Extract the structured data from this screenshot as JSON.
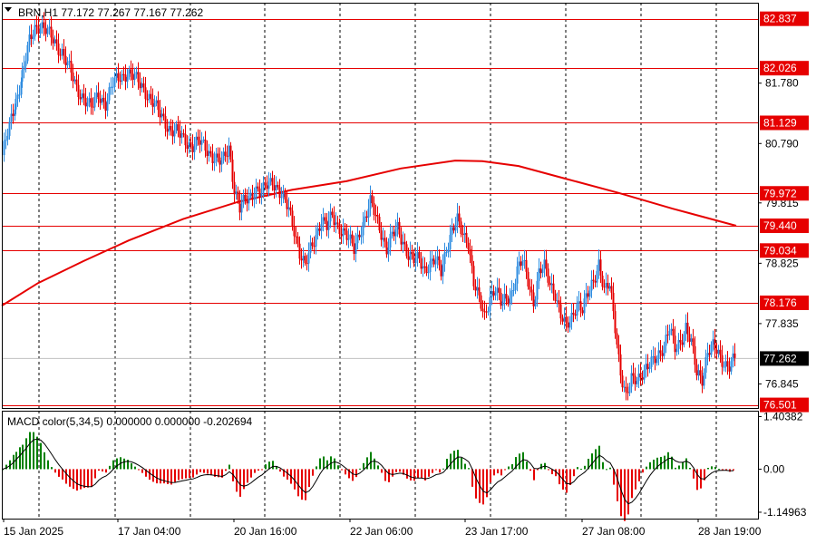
{
  "header": {
    "symbol_line": "BRN,H1  77.172 77.267 77.167 77.262",
    "macd_line": "MACD color(5,34,5) 0.000000 0.000000 -0.202694"
  },
  "chart_data": [
    {
      "type": "candlestick",
      "title": "BRN,H1",
      "ohlc_last": {
        "open": 77.172,
        "high": 77.267,
        "low": 77.167,
        "close": 77.262
      },
      "ylim": [
        76.45,
        83.1
      ],
      "y_ticks": [
        81.78,
        80.79,
        79.815,
        78.825,
        77.835,
        76.845
      ],
      "current_price": 77.262,
      "levels": [
        82.837,
        82.026,
        81.129,
        79.972,
        79.44,
        79.034,
        78.176,
        76.501
      ],
      "x_ticks": [
        "15 Jan 2025",
        "17 Jan 04:00",
        "20 Jan 16:00",
        "22 Jan 06:00",
        "23 Jan 17:00",
        "27 Jan 08:00",
        "28 Jan 19:00"
      ],
      "moving_average": {
        "x": [
          0,
          40,
          90,
          140,
          200,
          260,
          320,
          380,
          440,
          500,
          530,
          570,
          620,
          680,
          740,
          810
        ],
        "y": [
          78.13,
          78.5,
          78.86,
          79.2,
          79.55,
          79.83,
          80.03,
          80.17,
          80.38,
          80.51,
          80.5,
          80.42,
          80.22,
          79.98,
          79.72,
          79.44
        ]
      },
      "price_path": {
        "x": [
          0,
          8,
          15,
          22,
          30,
          36,
          42,
          50,
          58,
          66,
          74,
          82,
          90,
          98,
          106,
          114,
          122,
          130,
          138,
          146,
          154,
          162,
          170,
          178,
          186,
          194,
          202,
          210,
          218,
          226,
          234,
          242,
          250,
          256,
          262,
          268,
          274,
          280,
          286,
          292,
          298,
          304,
          310,
          316,
          322,
          328,
          334,
          340,
          346,
          352,
          358,
          364,
          370,
          376,
          382,
          388,
          394,
          400,
          406,
          412,
          418,
          424,
          430,
          436,
          442,
          448,
          454,
          460,
          466,
          472,
          478,
          484,
          490,
          496,
          502,
          508,
          514,
          520,
          526,
          532,
          538,
          544,
          550,
          556,
          562,
          568,
          574,
          580,
          586,
          592,
          598,
          604,
          610,
          616,
          622,
          628,
          634,
          640,
          646,
          652,
          658,
          664,
          670,
          676,
          682,
          688,
          694,
          700,
          706,
          712,
          718,
          724,
          730,
          736,
          742,
          748,
          754,
          760,
          766,
          772,
          778,
          784,
          790,
          796,
          802,
          808
        ],
        "y": [
          80.6,
          81.05,
          81.5,
          81.9,
          82.45,
          82.7,
          82.75,
          82.6,
          82.45,
          82.3,
          82.0,
          81.7,
          81.55,
          81.35,
          81.6,
          81.45,
          81.75,
          81.9,
          81.95,
          81.85,
          81.75,
          81.55,
          81.35,
          81.2,
          81.0,
          80.95,
          80.85,
          80.75,
          80.8,
          80.7,
          80.55,
          80.45,
          80.75,
          80.05,
          79.7,
          79.85,
          79.95,
          80.05,
          79.95,
          80.1,
          80.2,
          80.05,
          79.85,
          79.7,
          79.4,
          79.0,
          78.75,
          79.05,
          79.3,
          79.55,
          79.4,
          79.6,
          79.45,
          79.35,
          79.2,
          79.05,
          79.35,
          79.55,
          79.8,
          79.6,
          79.35,
          79.05,
          79.25,
          79.4,
          79.2,
          78.95,
          78.85,
          78.9,
          78.75,
          78.8,
          78.85,
          78.7,
          79.1,
          79.35,
          79.5,
          79.3,
          79.2,
          78.5,
          78.2,
          77.95,
          78.3,
          78.4,
          78.15,
          78.25,
          78.35,
          78.7,
          78.85,
          78.55,
          78.2,
          78.65,
          78.75,
          78.5,
          78.35,
          77.95,
          77.75,
          77.95,
          78.2,
          78.05,
          78.3,
          78.55,
          78.85,
          78.35,
          78.45,
          77.8,
          77.05,
          76.6,
          76.9,
          76.95,
          77.05,
          77.1,
          77.2,
          77.35,
          77.5,
          77.75,
          77.4,
          77.55,
          77.8,
          77.5,
          77.0,
          76.95,
          77.4,
          77.45,
          77.3,
          77.2,
          77.17,
          77.262
        ]
      }
    },
    {
      "type": "bar",
      "title": "MACD color(5,34,5)",
      "ylim": [
        -1.32,
        1.56
      ],
      "y_ticks": [
        1.40382,
        0.0,
        -1.14963
      ],
      "note_values": [
        0.0,
        0.0,
        -0.202694
      ]
    }
  ]
}
